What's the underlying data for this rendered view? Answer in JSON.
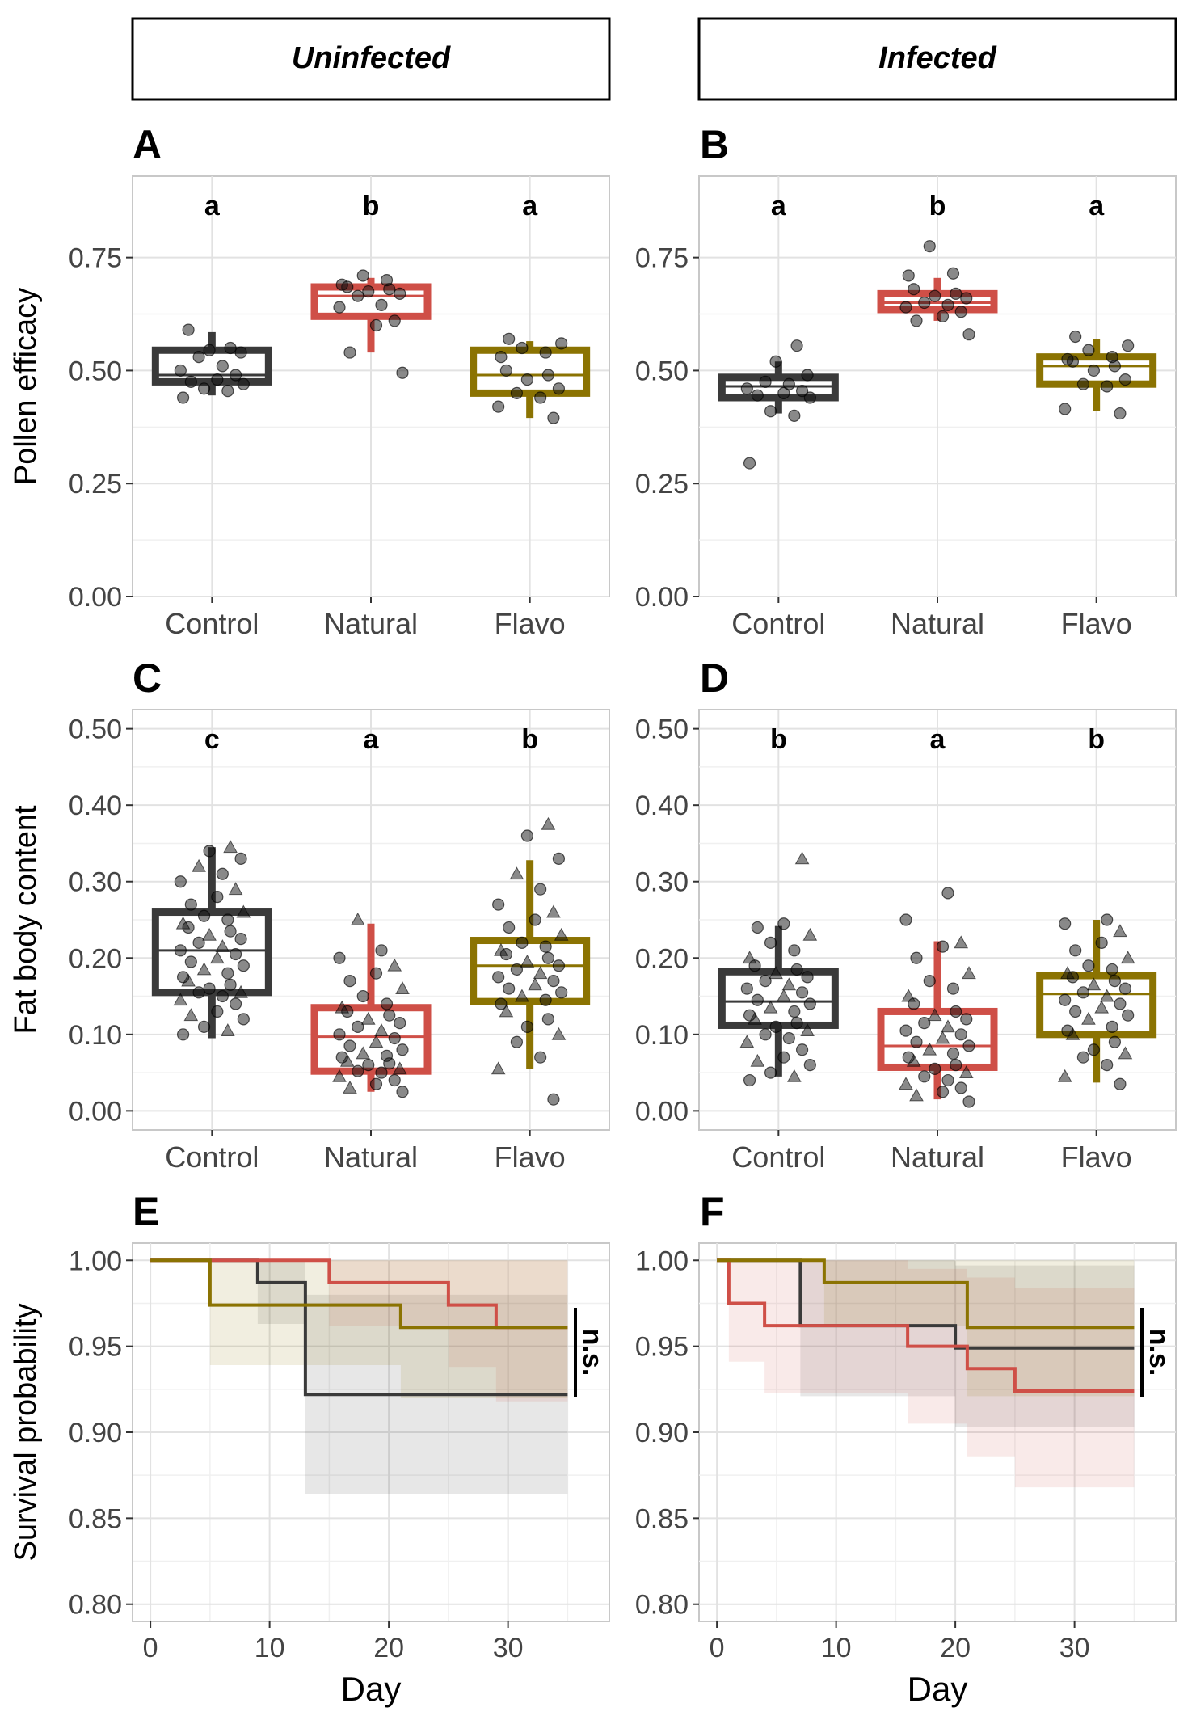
{
  "headers": [
    "Uninfected",
    "Infected"
  ],
  "colors": {
    "Control": "#3a3a3a",
    "Natural": "#cf4f47",
    "Flavo": "#8b7302"
  },
  "chart_data": [
    {
      "id": "A",
      "type": "box",
      "ylabel": "Pollen efficacy",
      "ylim": [
        0,
        0.93
      ],
      "yticks": [
        0,
        0.25,
        0.5,
        0.75
      ],
      "yticklabels": [
        "0.00",
        "0.25",
        "0.50",
        "0.75"
      ],
      "categories": [
        "Control",
        "Natural",
        "Flavo"
      ],
      "letters": [
        "a",
        "b",
        "a"
      ],
      "boxes": [
        {
          "group": "Control",
          "q1": 0.475,
          "median": 0.49,
          "q3": 0.545,
          "whisker_low": 0.445,
          "whisker_high": 0.585
        },
        {
          "group": "Natural",
          "q1": 0.62,
          "median": 0.665,
          "q3": 0.685,
          "whisker_low": 0.54,
          "whisker_high": 0.705
        },
        {
          "group": "Flavo",
          "q1": 0.45,
          "median": 0.49,
          "q3": 0.545,
          "whisker_low": 0.395,
          "whisker_high": 0.565
        }
      ],
      "points": [
        {
          "group": "Control",
          "values": [
            0.44,
            0.455,
            0.46,
            0.47,
            0.475,
            0.48,
            0.49,
            0.5,
            0.51,
            0.53,
            0.54,
            0.545,
            0.55,
            0.59
          ]
        },
        {
          "group": "Natural",
          "values": [
            0.495,
            0.54,
            0.6,
            0.61,
            0.64,
            0.645,
            0.665,
            0.67,
            0.675,
            0.68,
            0.685,
            0.69,
            0.7,
            0.71
          ]
        },
        {
          "group": "Flavo",
          "values": [
            0.395,
            0.42,
            0.44,
            0.45,
            0.46,
            0.48,
            0.49,
            0.5,
            0.53,
            0.54,
            0.55,
            0.56,
            0.57
          ]
        }
      ]
    },
    {
      "id": "B",
      "type": "box",
      "ylabel": "",
      "ylim": [
        0,
        0.93
      ],
      "yticks": [
        0,
        0.25,
        0.5,
        0.75
      ],
      "yticklabels": [
        "0.00",
        "0.25",
        "0.50",
        "0.75"
      ],
      "categories": [
        "Control",
        "Natural",
        "Flavo"
      ],
      "letters": [
        "a",
        "b",
        "a"
      ],
      "boxes": [
        {
          "group": "Control",
          "q1": 0.44,
          "median": 0.465,
          "q3": 0.485,
          "whisker_low": 0.405,
          "whisker_high": 0.52
        },
        {
          "group": "Natural",
          "q1": 0.635,
          "median": 0.65,
          "q3": 0.67,
          "whisker_low": 0.61,
          "whisker_high": 0.705
        },
        {
          "group": "Flavo",
          "q1": 0.47,
          "median": 0.51,
          "q3": 0.53,
          "whisker_low": 0.41,
          "whisker_high": 0.57
        }
      ],
      "points": [
        {
          "group": "Control",
          "values": [
            0.295,
            0.4,
            0.41,
            0.44,
            0.445,
            0.45,
            0.455,
            0.46,
            0.47,
            0.475,
            0.49,
            0.52,
            0.555
          ]
        },
        {
          "group": "Natural",
          "values": [
            0.58,
            0.61,
            0.62,
            0.63,
            0.64,
            0.645,
            0.65,
            0.66,
            0.665,
            0.67,
            0.68,
            0.71,
            0.715,
            0.775
          ]
        },
        {
          "group": "Flavo",
          "values": [
            0.405,
            0.415,
            0.465,
            0.47,
            0.48,
            0.5,
            0.51,
            0.52,
            0.525,
            0.53,
            0.545,
            0.555,
            0.575
          ]
        }
      ]
    },
    {
      "id": "C",
      "type": "box",
      "ylabel": "Fat body content",
      "ylim": [
        -0.025,
        0.525
      ],
      "yticks": [
        0,
        0.1,
        0.2,
        0.3,
        0.4,
        0.5
      ],
      "yticklabels": [
        "0.00",
        "0.10",
        "0.20",
        "0.30",
        "0.40",
        "0.50"
      ],
      "categories": [
        "Control",
        "Natural",
        "Flavo"
      ],
      "letters": [
        "c",
        "a",
        "b"
      ],
      "boxes": [
        {
          "group": "Control",
          "q1": 0.155,
          "median": 0.21,
          "q3": 0.26,
          "whisker_low": 0.095,
          "whisker_high": 0.345
        },
        {
          "group": "Natural",
          "q1": 0.052,
          "median": 0.097,
          "q3": 0.135,
          "whisker_low": 0.025,
          "whisker_high": 0.245
        },
        {
          "group": "Flavo",
          "q1": 0.143,
          "median": 0.19,
          "q3": 0.223,
          "whisker_low": 0.055,
          "whisker_high": 0.328
        }
      ],
      "points": [
        {
          "group": "Control",
          "values": [
            0.1,
            0.105,
            0.11,
            0.12,
            0.125,
            0.13,
            0.14,
            0.145,
            0.15,
            0.155,
            0.155,
            0.16,
            0.165,
            0.17,
            0.175,
            0.18,
            0.185,
            0.19,
            0.195,
            0.2,
            0.205,
            0.21,
            0.215,
            0.22,
            0.225,
            0.23,
            0.235,
            0.24,
            0.245,
            0.25,
            0.255,
            0.26,
            0.27,
            0.28,
            0.29,
            0.3,
            0.31,
            0.32,
            0.33,
            0.34,
            0.345
          ]
        },
        {
          "group": "Natural",
          "values": [
            0.025,
            0.03,
            0.035,
            0.04,
            0.045,
            0.05,
            0.052,
            0.055,
            0.06,
            0.062,
            0.065,
            0.07,
            0.072,
            0.075,
            0.08,
            0.085,
            0.09,
            0.095,
            0.1,
            0.105,
            0.11,
            0.115,
            0.12,
            0.125,
            0.13,
            0.135,
            0.14,
            0.15,
            0.16,
            0.17,
            0.18,
            0.19,
            0.2,
            0.21,
            0.25
          ]
        },
        {
          "group": "Flavo",
          "values": [
            0.015,
            0.055,
            0.07,
            0.09,
            0.1,
            0.11,
            0.12,
            0.13,
            0.14,
            0.145,
            0.15,
            0.155,
            0.16,
            0.165,
            0.17,
            0.175,
            0.18,
            0.185,
            0.19,
            0.195,
            0.2,
            0.205,
            0.21,
            0.215,
            0.22,
            0.23,
            0.24,
            0.25,
            0.26,
            0.27,
            0.29,
            0.31,
            0.33,
            0.36,
            0.375
          ]
        }
      ]
    },
    {
      "id": "D",
      "type": "box",
      "ylabel": "",
      "ylim": [
        -0.025,
        0.525
      ],
      "yticks": [
        0,
        0.1,
        0.2,
        0.3,
        0.4,
        0.5
      ],
      "yticklabels": [
        "0.00",
        "0.10",
        "0.20",
        "0.30",
        "0.40",
        "0.50"
      ],
      "categories": [
        "Control",
        "Natural",
        "Flavo"
      ],
      "letters": [
        "b",
        "a",
        "b"
      ],
      "boxes": [
        {
          "group": "Control",
          "q1": 0.112,
          "median": 0.143,
          "q3": 0.182,
          "whisker_low": 0.045,
          "whisker_high": 0.242
        },
        {
          "group": "Natural",
          "q1": 0.057,
          "median": 0.085,
          "q3": 0.13,
          "whisker_low": 0.015,
          "whisker_high": 0.222
        },
        {
          "group": "Flavo",
          "q1": 0.1,
          "median": 0.153,
          "q3": 0.177,
          "whisker_low": 0.037,
          "whisker_high": 0.25
        }
      ],
      "points": [
        {
          "group": "Control",
          "values": [
            0.04,
            0.045,
            0.05,
            0.06,
            0.065,
            0.07,
            0.08,
            0.09,
            0.095,
            0.1,
            0.105,
            0.11,
            0.115,
            0.12,
            0.125,
            0.13,
            0.135,
            0.14,
            0.145,
            0.15,
            0.155,
            0.16,
            0.165,
            0.17,
            0.175,
            0.18,
            0.185,
            0.19,
            0.2,
            0.21,
            0.22,
            0.23,
            0.24,
            0.245,
            0.33
          ]
        },
        {
          "group": "Natural",
          "values": [
            0.012,
            0.02,
            0.025,
            0.03,
            0.035,
            0.04,
            0.045,
            0.05,
            0.055,
            0.06,
            0.065,
            0.07,
            0.075,
            0.08,
            0.085,
            0.09,
            0.095,
            0.1,
            0.105,
            0.11,
            0.115,
            0.12,
            0.125,
            0.13,
            0.14,
            0.15,
            0.16,
            0.17,
            0.18,
            0.2,
            0.215,
            0.22,
            0.25,
            0.285
          ]
        },
        {
          "group": "Flavo",
          "values": [
            0.035,
            0.045,
            0.06,
            0.07,
            0.075,
            0.08,
            0.09,
            0.1,
            0.105,
            0.11,
            0.12,
            0.125,
            0.13,
            0.135,
            0.14,
            0.145,
            0.15,
            0.155,
            0.16,
            0.165,
            0.17,
            0.175,
            0.18,
            0.185,
            0.19,
            0.2,
            0.21,
            0.22,
            0.235,
            0.245,
            0.25
          ]
        }
      ]
    },
    {
      "id": "E",
      "type": "line",
      "xlabel": "Day",
      "ylabel": "Survival probability",
      "xlim": [
        -1.5,
        38.5
      ],
      "ylim": [
        0.79,
        1.01
      ],
      "xticks": [
        0,
        10,
        20,
        30
      ],
      "xticklabels": [
        "0",
        "10",
        "20",
        "30"
      ],
      "yticks": [
        0.8,
        0.85,
        0.9,
        0.95,
        1.0
      ],
      "yticklabels": [
        "0.80",
        "0.85",
        "0.90",
        "0.95",
        "1.00"
      ],
      "annotation": "n.s.",
      "series": [
        {
          "group": "Control",
          "steps": [
            [
              0,
              1.0
            ],
            [
              9,
              0.987
            ],
            [
              13,
              0.922
            ],
            [
              35,
              0.922
            ]
          ],
          "ci_low": [
            [
              0,
              1.0
            ],
            [
              9,
              0.963
            ],
            [
              13,
              0.864
            ],
            [
              35,
              0.864
            ]
          ],
          "ci_high": [
            [
              0,
              1.0
            ],
            [
              9,
              1.0
            ],
            [
              13,
              0.98
            ],
            [
              35,
              0.98
            ]
          ]
        },
        {
          "group": "Natural",
          "steps": [
            [
              0,
              1.0
            ],
            [
              15,
              0.987
            ],
            [
              25,
              0.974
            ],
            [
              29,
              0.961
            ],
            [
              35,
              0.961
            ]
          ],
          "ci_low": [
            [
              0,
              1.0
            ],
            [
              15,
              0.962
            ],
            [
              25,
              0.938
            ],
            [
              29,
              0.918
            ],
            [
              35,
              0.918
            ]
          ],
          "ci_high": [
            [
              0,
              1.0
            ],
            [
              15,
              1.0
            ],
            [
              25,
              1.0
            ],
            [
              29,
              1.0
            ],
            [
              35,
              1.0
            ]
          ]
        },
        {
          "group": "Flavo",
          "steps": [
            [
              0,
              1.0
            ],
            [
              5,
              0.974
            ],
            [
              21,
              0.961
            ],
            [
              35,
              0.961
            ]
          ],
          "ci_low": [
            [
              0,
              1.0
            ],
            [
              5,
              0.939
            ],
            [
              21,
              0.92
            ],
            [
              35,
              0.92
            ]
          ],
          "ci_high": [
            [
              0,
              1.0
            ],
            [
              5,
              1.0
            ],
            [
              21,
              1.0
            ],
            [
              35,
              1.0
            ]
          ]
        }
      ]
    },
    {
      "id": "F",
      "type": "line",
      "xlabel": "Day",
      "ylabel": "",
      "xlim": [
        -1.5,
        38.5
      ],
      "ylim": [
        0.79,
        1.01
      ],
      "xticks": [
        0,
        10,
        20,
        30
      ],
      "xticklabels": [
        "0",
        "10",
        "20",
        "30"
      ],
      "yticks": [
        0.8,
        0.85,
        0.9,
        0.95,
        1.0
      ],
      "yticklabels": [
        "0.80",
        "0.85",
        "0.90",
        "0.95",
        "1.00"
      ],
      "annotation": "n.s.",
      "series": [
        {
          "group": "Control",
          "steps": [
            [
              0,
              1.0
            ],
            [
              7,
              0.962
            ],
            [
              20,
              0.949
            ],
            [
              35,
              0.949
            ]
          ],
          "ci_low": [
            [
              0,
              1.0
            ],
            [
              7,
              0.921
            ],
            [
              20,
              0.903
            ],
            [
              35,
              0.903
            ]
          ],
          "ci_high": [
            [
              0,
              1.0
            ],
            [
              7,
              1.0
            ],
            [
              20,
              0.997
            ],
            [
              35,
              0.997
            ]
          ]
        },
        {
          "group": "Natural",
          "steps": [
            [
              0,
              1.0
            ],
            [
              1,
              0.975
            ],
            [
              4,
              0.962
            ],
            [
              16,
              0.95
            ],
            [
              21,
              0.937
            ],
            [
              25,
              0.924
            ],
            [
              35,
              0.924
            ]
          ],
          "ci_low": [
            [
              0,
              1.0
            ],
            [
              1,
              0.941
            ],
            [
              4,
              0.923
            ],
            [
              16,
              0.905
            ],
            [
              21,
              0.886
            ],
            [
              25,
              0.868
            ],
            [
              35,
              0.868
            ]
          ],
          "ci_high": [
            [
              0,
              1.0
            ],
            [
              1,
              1.0
            ],
            [
              4,
              1.0
            ],
            [
              16,
              0.995
            ],
            [
              21,
              0.99
            ],
            [
              25,
              0.984
            ],
            [
              35,
              0.984
            ]
          ]
        },
        {
          "group": "Flavo",
          "steps": [
            [
              0,
              1.0
            ],
            [
              9,
              0.987
            ],
            [
              21,
              0.961
            ],
            [
              35,
              0.961
            ]
          ],
          "ci_low": [
            [
              0,
              1.0
            ],
            [
              9,
              0.962
            ],
            [
              21,
              0.921
            ],
            [
              35,
              0.921
            ]
          ],
          "ci_high": [
            [
              0,
              1.0
            ],
            [
              9,
              1.0
            ],
            [
              21,
              1.0
            ],
            [
              35,
              1.0
            ]
          ]
        }
      ]
    }
  ]
}
